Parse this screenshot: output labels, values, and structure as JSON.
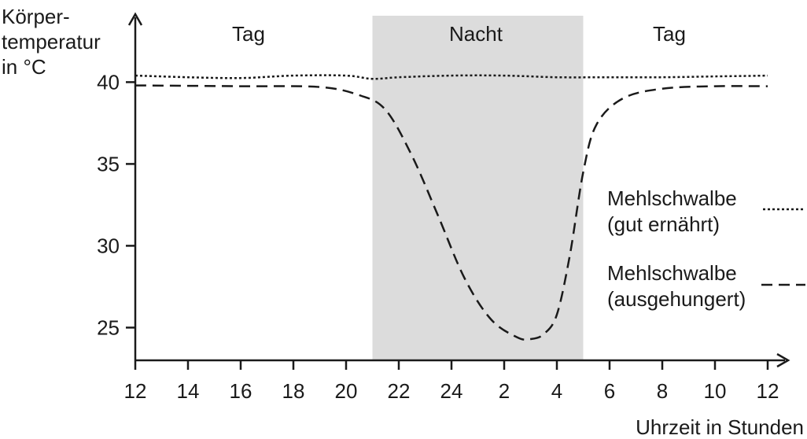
{
  "chart_data": {
    "type": "line",
    "ylabel_lines": [
      "Körper-",
      "temperatur",
      "in °C"
    ],
    "xlabel": "Uhrzeit in Stunden",
    "x_ticks": [
      "12",
      "14",
      "16",
      "18",
      "20",
      "22",
      "24",
      "2",
      "4",
      "6",
      "8",
      "10",
      "12"
    ],
    "y_ticks": [
      25,
      30,
      35,
      40
    ],
    "ylim": [
      23,
      42.5
    ],
    "xlim_hours": [
      0,
      24.5
    ],
    "regions": [
      {
        "label": "Tag",
        "start": 0,
        "end": 9
      },
      {
        "label": "Nacht",
        "start": 9,
        "end": 17,
        "shade": "#dcdcdc"
      },
      {
        "label": "Tag",
        "start": 17,
        "end": 24
      }
    ],
    "series": [
      {
        "name_lines": [
          "Mehlschwalbe",
          "(gut ernährt)"
        ],
        "style": "dotted",
        "points": [
          [
            0,
            40.4
          ],
          [
            2,
            40.3
          ],
          [
            4,
            40.25
          ],
          [
            6,
            40.4
          ],
          [
            8,
            40.4
          ],
          [
            9,
            40.2
          ],
          [
            10,
            40.3
          ],
          [
            12,
            40.4
          ],
          [
            14,
            40.4
          ],
          [
            16,
            40.3
          ],
          [
            18,
            40.3
          ],
          [
            20,
            40.3
          ],
          [
            22,
            40.35
          ],
          [
            24,
            40.4
          ]
        ]
      },
      {
        "name_lines": [
          "Mehlschwalbe",
          "(ausgehungert)"
        ],
        "style": "dashed",
        "points": [
          [
            0,
            39.8
          ],
          [
            4,
            39.75
          ],
          [
            7,
            39.7
          ],
          [
            8.5,
            39.2
          ],
          [
            9.5,
            38.3
          ],
          [
            10.5,
            35.5
          ],
          [
            11.5,
            31.8
          ],
          [
            12.5,
            28.0
          ],
          [
            13.5,
            25.5
          ],
          [
            14.5,
            24.4
          ],
          [
            15,
            24.3
          ],
          [
            15.5,
            24.6
          ],
          [
            16,
            25.8
          ],
          [
            16.5,
            29.5
          ],
          [
            17,
            34.5
          ],
          [
            17.5,
            37.4
          ],
          [
            18.5,
            39.0
          ],
          [
            20,
            39.6
          ],
          [
            22,
            39.75
          ],
          [
            24,
            39.75
          ]
        ]
      }
    ],
    "colors": {
      "line": "#1a1a1a",
      "night_shade": "#dcdcdc"
    }
  }
}
